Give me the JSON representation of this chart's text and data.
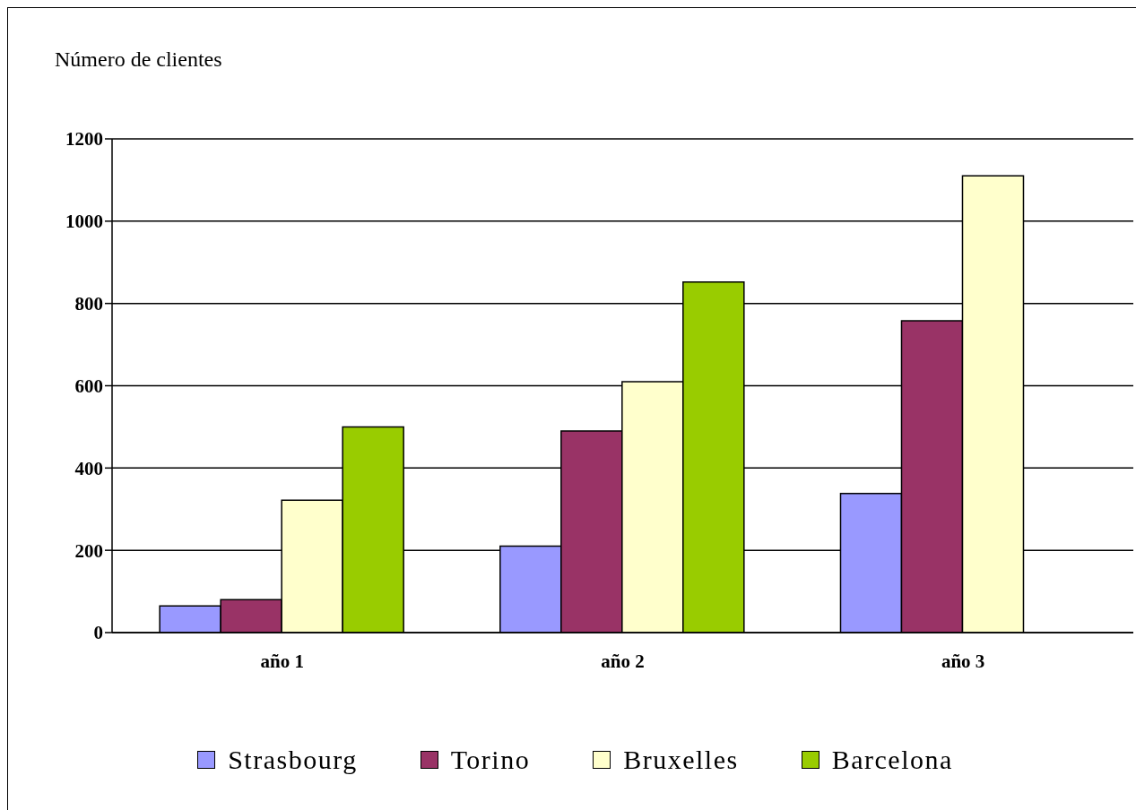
{
  "chart_data": {
    "type": "bar",
    "ylabel": "Número de clientes",
    "categories": [
      "año 1",
      "año 2",
      "año 3"
    ],
    "series": [
      {
        "name": "Strasbourg",
        "color": "#9999ff",
        "values": [
          65,
          210,
          338
        ]
      },
      {
        "name": "Torino",
        "color": "#993366",
        "values": [
          80,
          490,
          758
        ]
      },
      {
        "name": "Bruxelles",
        "color": "#ffffcc",
        "values": [
          322,
          610,
          1110
        ]
      },
      {
        "name": "Barcelona",
        "color": "#99cc00",
        "values": [
          500,
          852,
          null
        ]
      }
    ],
    "ylim": [
      0,
      1200
    ],
    "yticks": [
      0,
      200,
      400,
      600,
      800,
      1000,
      1200
    ],
    "grid": "y",
    "legend": "bottom"
  }
}
